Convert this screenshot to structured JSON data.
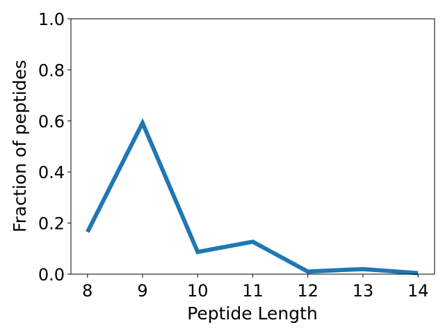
{
  "chart_data": {
    "type": "line",
    "title": "",
    "xlabel": "Peptide Length",
    "ylabel": "Fraction of peptides",
    "x": [
      8,
      9,
      10,
      11,
      12,
      13,
      14
    ],
    "series": [
      {
        "values": [
          0.165,
          0.592,
          0.087,
          0.127,
          0.01,
          0.02,
          0.004
        ],
        "color": "#1f77b4"
      }
    ],
    "xlim": [
      7.7,
      14.3
    ],
    "ylim": [
      0.0,
      1.0
    ],
    "xticks": [
      8,
      9,
      10,
      11,
      12,
      13,
      14
    ],
    "yticks": [
      "0.0",
      "0.2",
      "0.4",
      "0.6",
      "0.8",
      "1.0"
    ],
    "grid": false,
    "legend": "none"
  }
}
